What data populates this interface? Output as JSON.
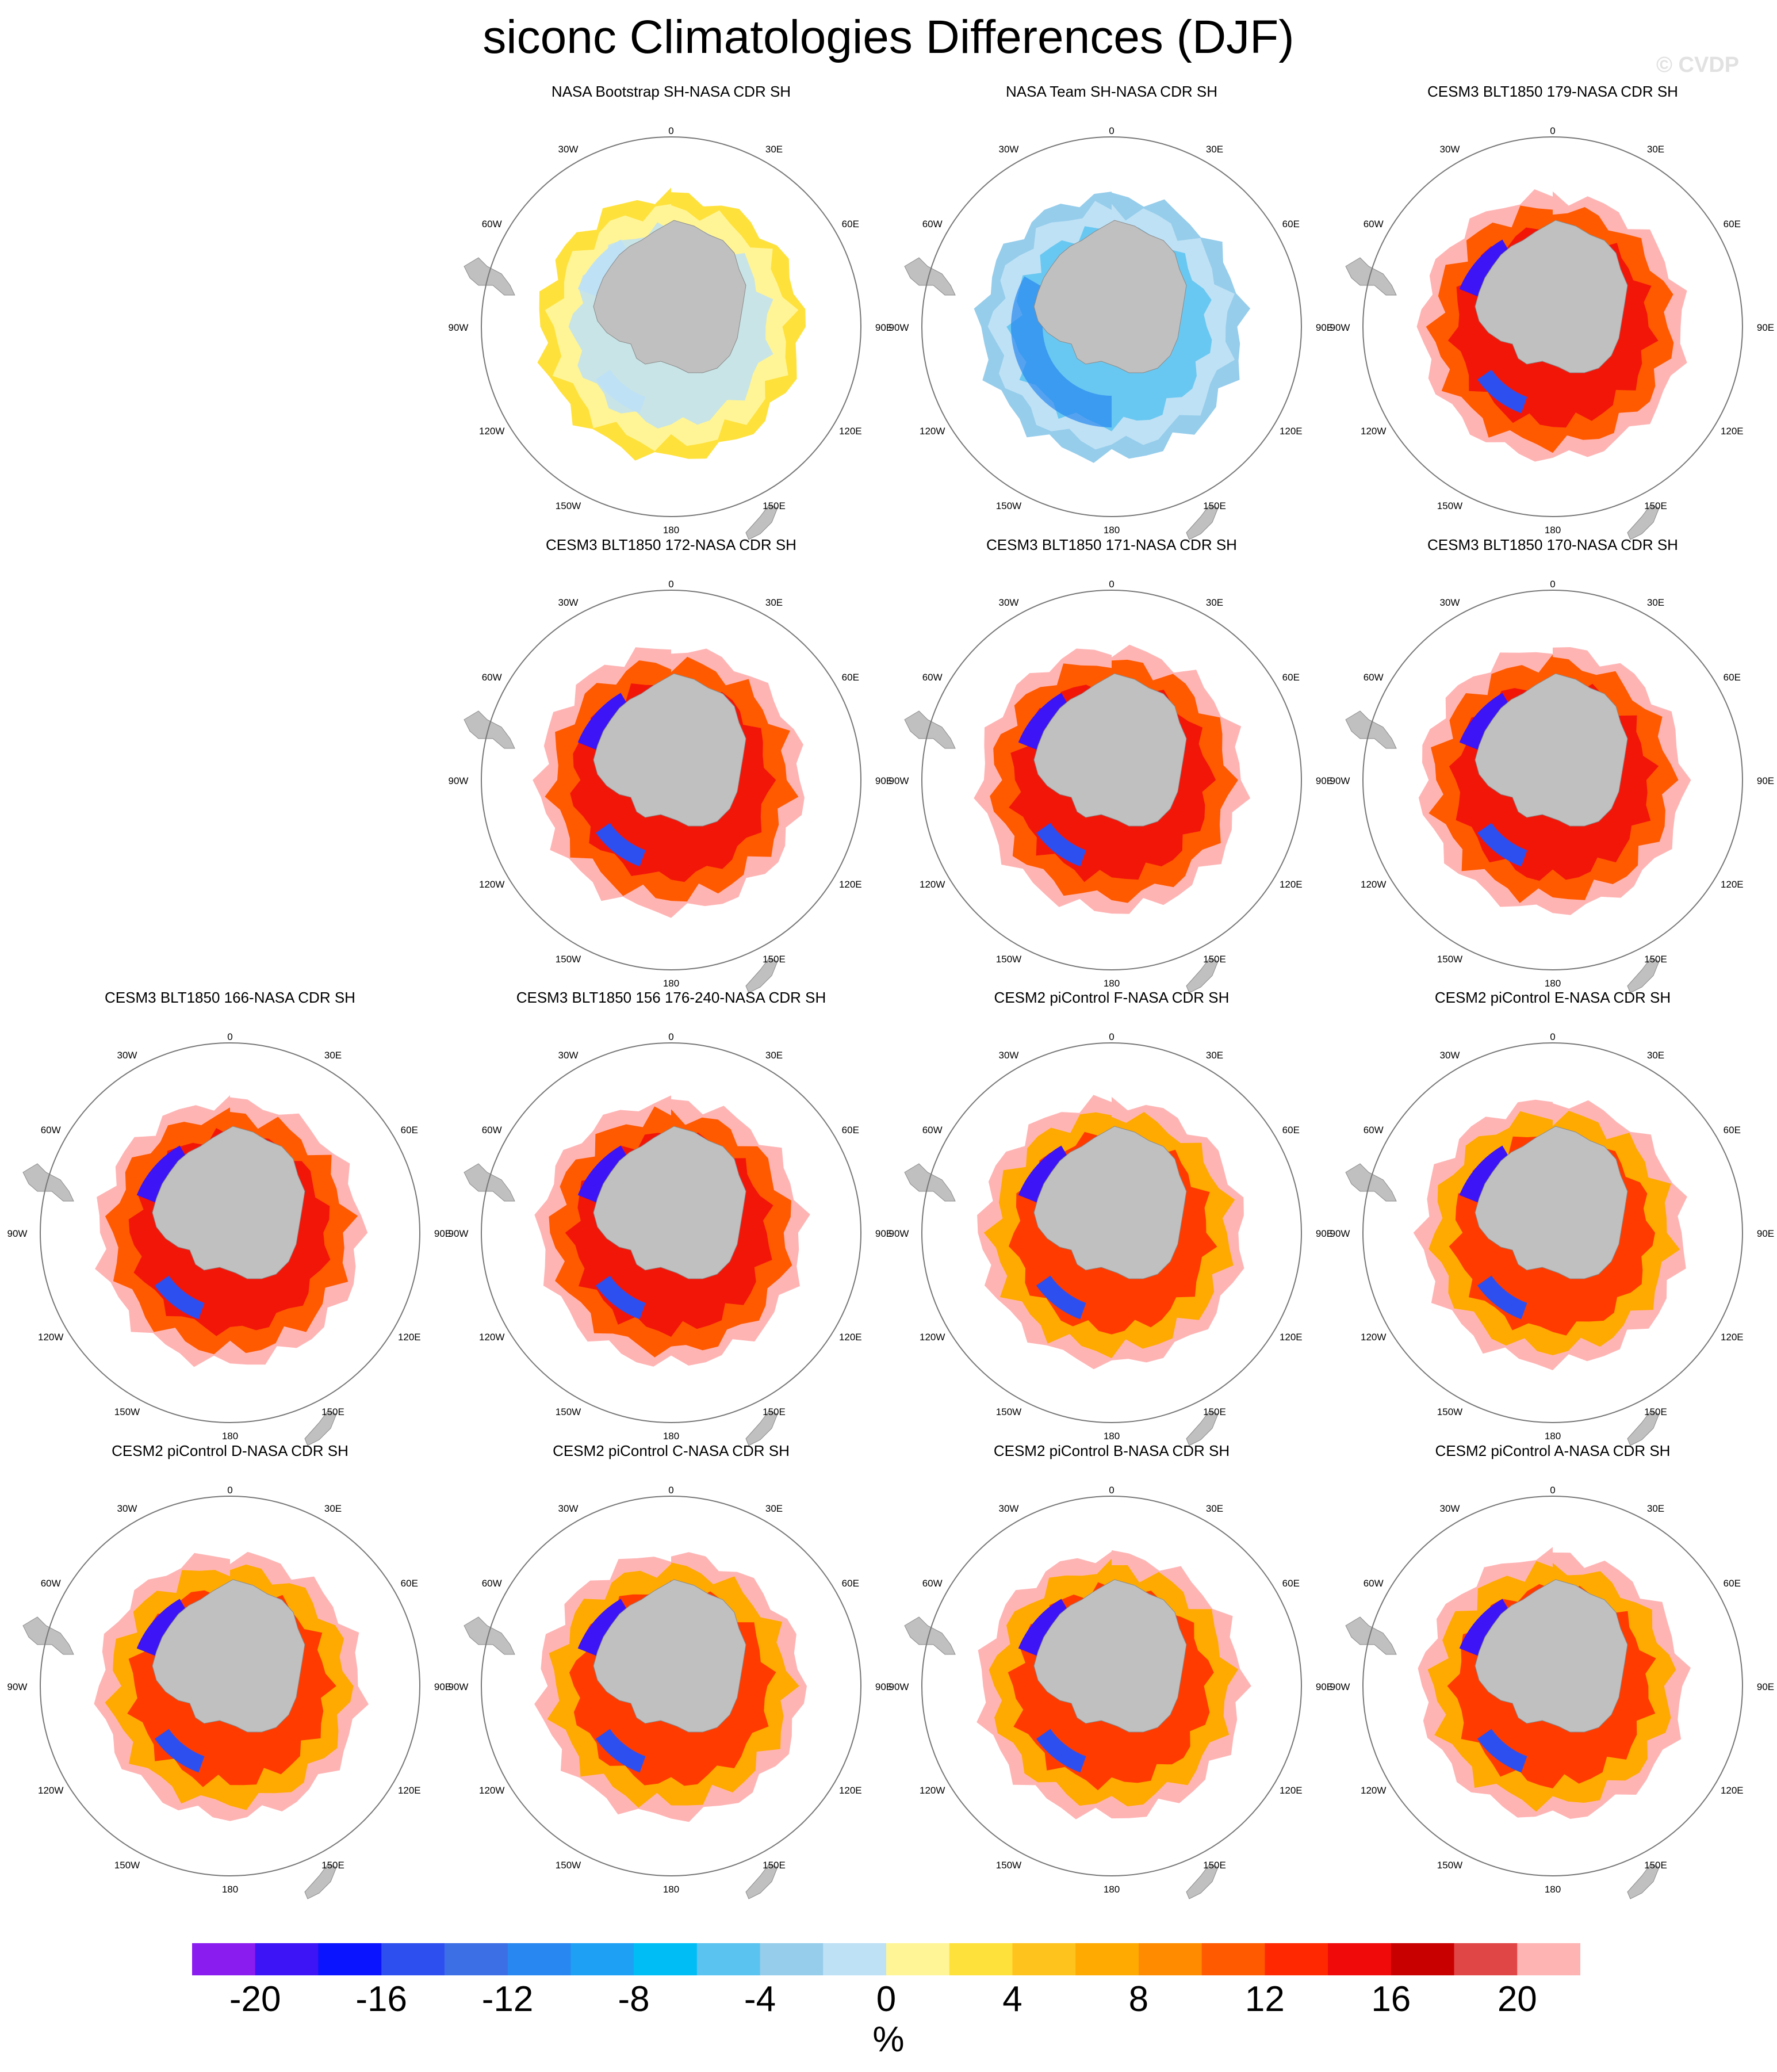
{
  "title": "siconc Climatologies Differences (DJF)",
  "watermark": "© CVDP",
  "units": "%",
  "panels": [
    {
      "title": "NASA Bootstrap SH-NASA CDR SH",
      "row": 0,
      "col": 1,
      "pattern": "bootstrap"
    },
    {
      "title": "NASA Team SH-NASA CDR SH",
      "row": 0,
      "col": 2,
      "pattern": "team"
    },
    {
      "title": "CESM3 BLT1850 179-NASA CDR SH",
      "row": 0,
      "col": 3,
      "pattern": "cesm3"
    },
    {
      "title": "CESM3 BLT1850 172-NASA CDR SH",
      "row": 1,
      "col": 1,
      "pattern": "cesm3"
    },
    {
      "title": "CESM3 BLT1850 171-NASA CDR SH",
      "row": 1,
      "col": 2,
      "pattern": "cesm3"
    },
    {
      "title": "CESM3 BLT1850 170-NASA CDR SH",
      "row": 1,
      "col": 3,
      "pattern": "cesm3"
    },
    {
      "title": "CESM3 BLT1850 166-NASA CDR SH",
      "row": 2,
      "col": 0,
      "pattern": "cesm3"
    },
    {
      "title": "CESM3 BLT1850 156 176-240-NASA CDR SH",
      "row": 2,
      "col": 1,
      "pattern": "cesm3"
    },
    {
      "title": "CESM2 piControl F-NASA CDR SH",
      "row": 2,
      "col": 2,
      "pattern": "cesm2"
    },
    {
      "title": "CESM2 piControl E-NASA CDR SH",
      "row": 2,
      "col": 3,
      "pattern": "cesm2"
    },
    {
      "title": "CESM2 piControl D-NASA CDR SH",
      "row": 3,
      "col": 0,
      "pattern": "cesm2"
    },
    {
      "title": "CESM2 piControl C-NASA CDR SH",
      "row": 3,
      "col": 1,
      "pattern": "cesm2"
    },
    {
      "title": "CESM2 piControl B-NASA CDR SH",
      "row": 3,
      "col": 2,
      "pattern": "cesm2"
    },
    {
      "title": "CESM2 piControl A-NASA CDR SH",
      "row": 3,
      "col": 3,
      "pattern": "cesm2"
    }
  ],
  "map_labels": {
    "top": "0",
    "r30e": "30E",
    "r60e": "60E",
    "r90e": "90E",
    "r120e": "120E",
    "r150e": "150E",
    "bottom": "180",
    "l150w": "150W",
    "l120w": "120W",
    "l90w": "90W",
    "l60w": "60W",
    "l30w": "30W"
  },
  "colorbar": {
    "colors": [
      "#8b1cf0",
      "#3c14f5",
      "#0a14ff",
      "#2d4ff0",
      "#3c6ee6",
      "#2887f0",
      "#1ea0f5",
      "#00bef5",
      "#5ac3f0",
      "#96cdeb",
      "#bee1f5",
      "#fff596",
      "#ffe13c",
      "#ffc31e",
      "#ffaa00",
      "#ff8c00",
      "#ff5a00",
      "#ff2800",
      "#f00a0a",
      "#c80000",
      "#e14646",
      "#ffb4b4"
    ],
    "labels": [
      "-20",
      "-16",
      "-12",
      "-8",
      "-4",
      "0",
      "4",
      "8",
      "12",
      "16",
      "20"
    ]
  }
}
